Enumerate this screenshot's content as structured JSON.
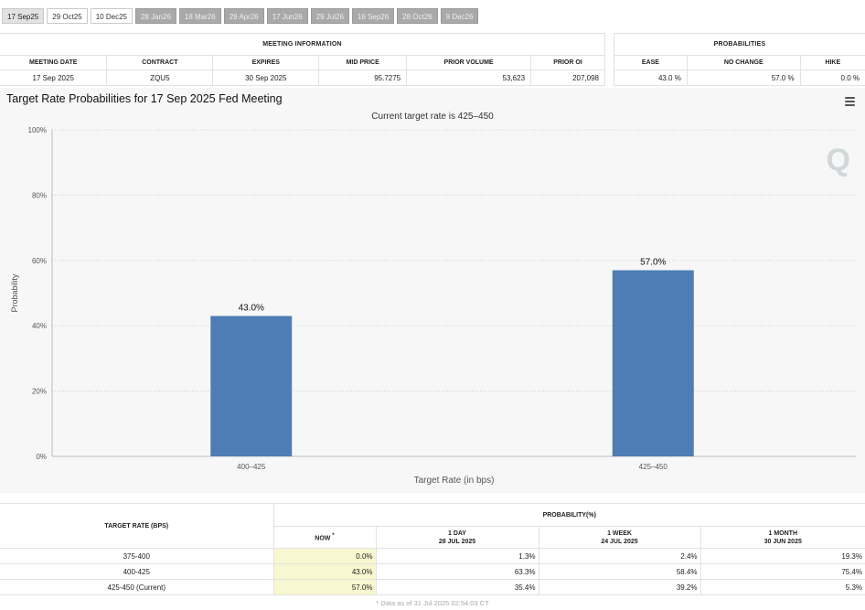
{
  "tabs": [
    {
      "label": "17 Sep25",
      "state": "active"
    },
    {
      "label": "29 Oct25",
      "state": "open"
    },
    {
      "label": "10 Dec25",
      "state": "open"
    },
    {
      "label": "28 Jan26",
      "state": "disabled"
    },
    {
      "label": "18 Mar26",
      "state": "disabled"
    },
    {
      "label": "29 Apr26",
      "state": "disabled"
    },
    {
      "label": "17 Jun26",
      "state": "disabled"
    },
    {
      "label": "29 Jul26",
      "state": "disabled"
    },
    {
      "label": "16 Sep26",
      "state": "disabled"
    },
    {
      "label": "28 Oct26",
      "state": "disabled"
    },
    {
      "label": "9 Dec26",
      "state": "disabled"
    }
  ],
  "meeting_info": {
    "section_title": "MEETING INFORMATION",
    "headers": [
      "MEETING DATE",
      "CONTRACT",
      "EXPIRES",
      "MID PRICE",
      "PRIOR VOLUME",
      "PRIOR OI"
    ],
    "values": [
      "17 Sep 2025",
      "ZQU5",
      "30 Sep 2025",
      "95.7275",
      "53,623",
      "207,098"
    ]
  },
  "probabilities": {
    "section_title": "PROBABILITIES",
    "headers": [
      "EASE",
      "NO CHANGE",
      "HIKE"
    ],
    "values": [
      "43.0 %",
      "57.0 %",
      "0.0 %"
    ]
  },
  "chart": {
    "title": "Target Rate Probabilities for 17 Sep 2025 Fed Meeting",
    "watermark": "Q"
  },
  "chart_data": {
    "type": "bar",
    "title": "Target Rate Probabilities for 17 Sep 2025 Fed Meeting",
    "subtitle": "Current target rate is 425–450",
    "categories": [
      "400–425",
      "425–450"
    ],
    "values": [
      43.0,
      57.0
    ],
    "data_labels": [
      "43.0%",
      "57.0%"
    ],
    "xlabel": "Target Rate (in bps)",
    "ylabel": "Probability",
    "ylim": [
      0,
      100
    ],
    "yticks": [
      0,
      20,
      40,
      60,
      80,
      100
    ],
    "ytick_labels": [
      "0%",
      "20%",
      "40%",
      "60%",
      "80%",
      "100%"
    ],
    "bar_color": "#4e7db5",
    "grid": true,
    "legend": "none"
  },
  "prob_table": {
    "rate_header": "TARGET RATE (BPS)",
    "prob_header": "PROBABILITY(%)",
    "columns": [
      {
        "line1": "NOW",
        "line2": "",
        "mark": "*"
      },
      {
        "line1": "1 DAY",
        "line2": "28 JUL 2025"
      },
      {
        "line1": "1 WEEK",
        "line2": "24 JUL 2025"
      },
      {
        "line1": "1 MONTH",
        "line2": "30 JUN 2025"
      }
    ],
    "rows": [
      {
        "rate": "375-400",
        "values": [
          "0.0%",
          "1.3%",
          "2.4%",
          "19.3%"
        ]
      },
      {
        "rate": "400-425",
        "values": [
          "43.0%",
          "63.3%",
          "58.4%",
          "75.4%"
        ]
      },
      {
        "rate": "425-450 (Current)",
        "values": [
          "57.0%",
          "35.4%",
          "39.2%",
          "5.3%"
        ]
      }
    ],
    "footnote": "* Data as of 31 Jul 2025 02:54:03 CT"
  }
}
